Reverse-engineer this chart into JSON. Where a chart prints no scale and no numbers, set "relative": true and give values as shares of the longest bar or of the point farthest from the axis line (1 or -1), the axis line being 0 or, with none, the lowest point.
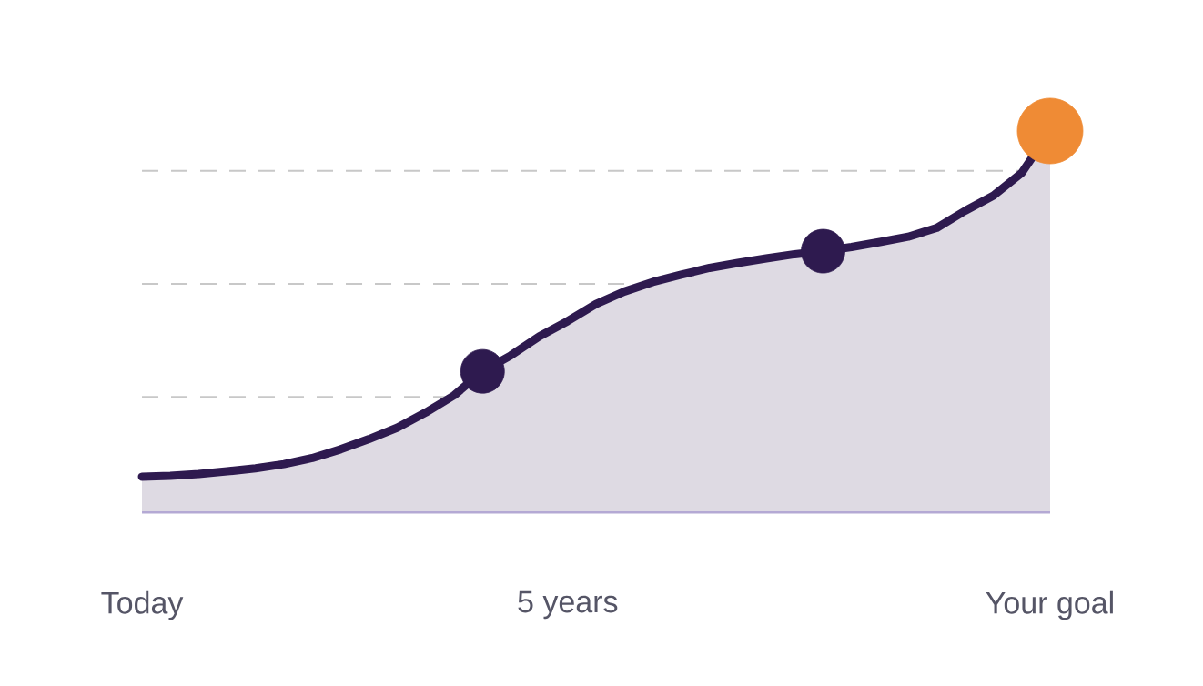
{
  "chart_data": {
    "type": "area",
    "relative": true,
    "categories": [
      "Today",
      null,
      null,
      null,
      null,
      null,
      null,
      null,
      null,
      null,
      null,
      null,
      null,
      null,
      null,
      "5 years",
      null,
      null,
      null,
      null,
      null,
      null,
      null,
      null,
      null,
      null,
      null,
      null,
      null,
      null,
      null,
      null,
      "Your goal"
    ],
    "series": [
      {
        "color": "#2e1a4f",
        "line_style": "solid",
        "values": [
          0.091,
          0.093,
          0.098,
          0.105,
          0.113,
          0.124,
          0.14,
          0.163,
          0.19,
          0.22,
          0.26,
          0.305,
          0.368,
          0.41,
          0.46,
          0.5,
          0.545,
          0.578,
          0.603,
          0.622,
          0.64,
          0.653,
          0.665,
          0.676,
          0.684,
          0.695,
          0.708,
          0.722,
          0.745,
          0.79,
          0.83,
          0.89,
          1.0
        ]
      },
      {
        "type": "scatter",
        "color": "#2e1a4f",
        "values": [
          null,
          null,
          null,
          null,
          null,
          null,
          null,
          null,
          null,
          null,
          null,
          null,
          0.368,
          null,
          null,
          null,
          null,
          null,
          null,
          null,
          null,
          null,
          null,
          null,
          0.684,
          null,
          null,
          null,
          null,
          null,
          null,
          null,
          null
        ]
      },
      {
        "type": "scatter",
        "color": "#ef8b35",
        "values": [
          null,
          null,
          null,
          null,
          null,
          null,
          null,
          null,
          null,
          null,
          null,
          null,
          null,
          null,
          null,
          null,
          null,
          null,
          null,
          null,
          null,
          null,
          null,
          null,
          null,
          null,
          null,
          null,
          null,
          null,
          null,
          null,
          1.0
        ]
      }
    ],
    "ref_lines": [
      {
        "axis": "y",
        "value": 0.895,
        "color": "#c8c8c8",
        "line_style": "dashed"
      },
      {
        "axis": "y",
        "value": 0.598,
        "color": "#c8c8c8",
        "line_style": "dashed"
      },
      {
        "axis": "y",
        "value": 0.301,
        "color": "#c8c8c8",
        "line_style": "dashed"
      }
    ]
  }
}
